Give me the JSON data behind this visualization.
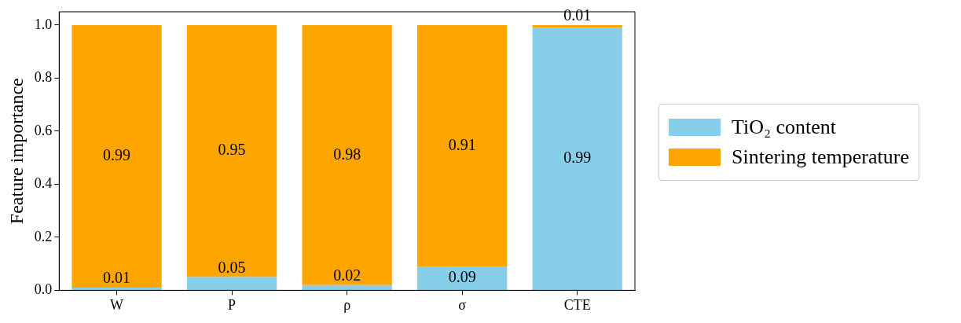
{
  "chart_data": {
    "type": "bar",
    "ylabel": "Feature importance",
    "categories": [
      "W",
      "P",
      "ρ",
      "σ",
      "CTE"
    ],
    "stacked": true,
    "series": [
      {
        "name": "TiO₂ content",
        "color": "#87ceeb",
        "values": [
          0.01,
          0.05,
          0.02,
          0.09,
          0.99
        ]
      },
      {
        "name": "Sintering temperature",
        "color": "#ffa500",
        "values": [
          0.99,
          0.95,
          0.98,
          0.91,
          0.01
        ]
      }
    ],
    "ylim": [
      0,
      1.05
    ],
    "yticks": [
      {
        "value": 0,
        "label": "0.0"
      },
      {
        "value": 0.2,
        "label": "0.2"
      },
      {
        "value": 0.4,
        "label": "0.4"
      },
      {
        "value": 0.6,
        "label": "0.6"
      },
      {
        "value": 0.8,
        "label": "0.8"
      },
      {
        "value": 1,
        "label": "1.0"
      }
    ],
    "data_labels": true,
    "grid": false,
    "legend": "right"
  }
}
